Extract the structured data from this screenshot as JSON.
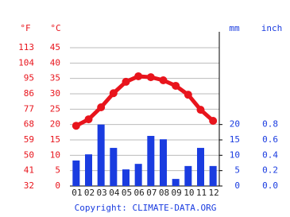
{
  "chart_data": {
    "type": "bar",
    "categories": [
      "01",
      "02",
      "03",
      "04",
      "05",
      "06",
      "07",
      "08",
      "09",
      "10",
      "11",
      "12"
    ],
    "y_unit_left": "°F",
    "y_unit": "°C",
    "y2_unit": "mm",
    "y2_unit_right": "inch",
    "ylim": [
      0,
      45
    ],
    "yticks": [
      0,
      5,
      10,
      15,
      20,
      25,
      30,
      35,
      40,
      45
    ],
    "yticks_f": [
      {
        "value": 0,
        "label": "32"
      },
      {
        "value": 5,
        "label": "41"
      },
      {
        "value": 10,
        "label": "50"
      },
      {
        "value": 15,
        "label": "59"
      },
      {
        "value": 20,
        "label": "68"
      },
      {
        "value": 25,
        "label": "77"
      },
      {
        "value": 30,
        "label": "86"
      },
      {
        "value": 35,
        "label": "95"
      },
      {
        "value": 40,
        "label": "104"
      },
      {
        "value": 45,
        "label": "113"
      }
    ],
    "y2lim": [
      0,
      45
    ],
    "y2ticks": [
      0,
      5,
      10,
      15,
      20
    ],
    "y2ticks_inch": [
      {
        "value": 0,
        "label": "0.0"
      },
      {
        "value": 5,
        "label": "0.2"
      },
      {
        "value": 10,
        "label": "0.4"
      },
      {
        "value": 15,
        "label": "0.6"
      },
      {
        "value": 20,
        "label": "0.8"
      }
    ],
    "grid": true,
    "series": [
      {
        "type": "bar",
        "axis": "y2",
        "color": "#1a3ce0",
        "values": [
          8.3,
          10.3,
          20,
          12.4,
          5.4,
          7.2,
          16.3,
          15.2,
          2.3,
          6.5,
          12.4,
          6.5
        ]
      },
      {
        "type": "line",
        "color": "#e8141c",
        "values": [
          19.6,
          21.7,
          25.6,
          30.2,
          33.9,
          35.7,
          35.4,
          34.4,
          32.6,
          29.7,
          24.8,
          21.2
        ]
      }
    ],
    "footer": "Copyright: CLIMATE-DATA.ORG"
  }
}
